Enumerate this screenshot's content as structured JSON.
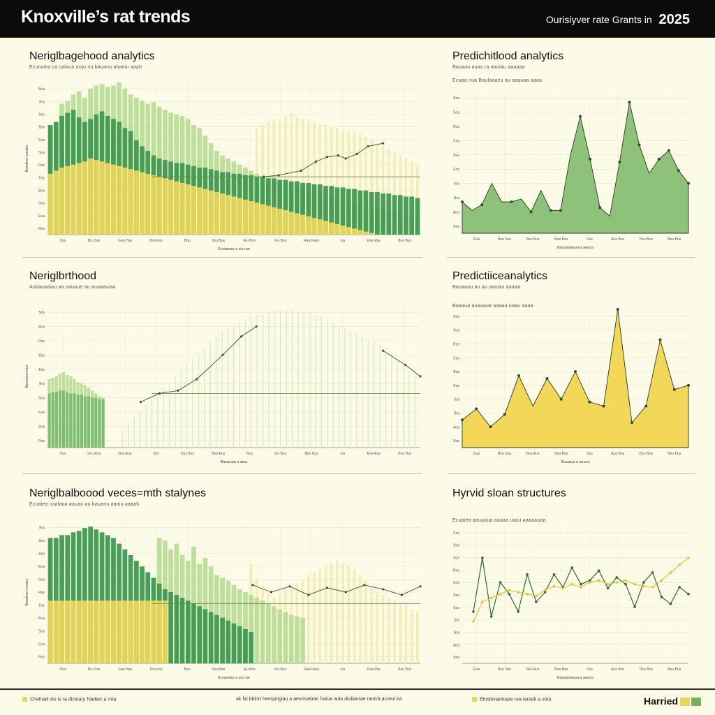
{
  "header": {
    "title": "Knoxville’s rat trends",
    "subtitle": "Ourisiyver rate Grants in",
    "year": "2025"
  },
  "colors": {
    "dark_green": "#3f9a4f",
    "mid_green": "#79bc6e",
    "light_green": "#b4d98f",
    "yellow": "#e9d65a",
    "pale_yellow": "#f3ecb0",
    "line": "#2e5a2a",
    "area_green": "#8ec27a",
    "area_yellow": "#f2d759"
  },
  "footer": {
    "left": "Chelnad ote is ra dicetary hiadiec a rnta",
    "middle": "ak fai bbinrt hensprigiau a aeorisatiran hairat aulo diolianrae rantcit acreul ira",
    "right": "Ehisbiviantoare rea tarasb a sotu",
    "brand": "Harried"
  },
  "chart_data": [
    {
      "id": "p1",
      "type": "bar",
      "title": "Neriglbagehood analytics",
      "subtitle": "Ecucaiea ca calaua arau nu bauanu ahaeiu aaah",
      "ylabel": "Bowdinai rumatur",
      "xlabel": "Eunamao a sic rae",
      "ylim": [
        0,
        100
      ],
      "y_ticks": [
        "Ros",
        "Eua",
        "Soa",
        "Bua",
        "Eos",
        "Ras",
        "Soa",
        "Eoa",
        "Bsa",
        "Sns",
        "Bra",
        "Bua"
      ],
      "x_ticks": [
        "Ouo",
        "Bru Sss",
        "Gua Hua",
        "Dra Ens",
        "Bou",
        "Ssu Boe",
        "Aiu Bos",
        "Ina Bou",
        "Raa Rass",
        "Lia",
        "Ras Rra",
        "Bou Bus"
      ],
      "series": [
        {
          "name": "Dark green",
          "color_key": "dark_green",
          "values": [
            72,
            74,
            78,
            80,
            82,
            77,
            74,
            76,
            79,
            81,
            78,
            76,
            74,
            70,
            68,
            62,
            58,
            55,
            52,
            50,
            49,
            48,
            47,
            47,
            46,
            45,
            44,
            44,
            43,
            42,
            41,
            41,
            40,
            40,
            39,
            39,
            38,
            38,
            37,
            37,
            36,
            36,
            35,
            35,
            34,
            34,
            33,
            33,
            32,
            32,
            31,
            31,
            30,
            30,
            29,
            29,
            28,
            28,
            27,
            27,
            26,
            26,
            25,
            25,
            24
          ]
        },
        {
          "name": "Light green",
          "color_key": "light_green",
          "values": [
            72,
            74,
            86,
            88,
            92,
            94,
            90,
            96,
            98,
            99,
            97,
            98,
            100,
            96,
            92,
            90,
            88,
            86,
            87,
            84,
            82,
            80,
            79,
            78,
            76,
            72,
            70,
            65,
            60,
            55,
            52,
            50,
            48,
            46,
            44,
            42,
            40,
            38,
            36,
            35,
            34,
            33,
            32,
            31,
            30,
            29,
            28,
            27,
            26,
            25,
            24,
            23,
            22,
            21,
            20,
            19,
            18,
            17,
            16,
            15,
            14,
            13,
            12,
            11,
            10
          ]
        },
        {
          "name": "Yellow",
          "color_key": "yellow",
          "values": [
            40,
            42,
            44,
            45,
            46,
            47,
            48,
            50,
            49,
            48,
            47,
            46,
            45,
            44,
            43,
            42,
            41,
            40,
            39,
            38,
            37,
            36,
            35,
            34,
            33,
            32,
            31,
            30,
            29,
            28,
            27,
            26,
            25,
            24,
            23,
            22,
            21,
            20,
            19,
            18,
            17,
            16,
            15,
            14,
            13,
            12,
            11,
            10,
            9,
            8,
            7,
            6,
            5,
            4,
            3,
            2,
            1,
            0,
            0,
            0,
            0,
            0,
            0,
            0,
            0
          ]
        },
        {
          "name": "Pale yellow",
          "color_key": "pale_yellow",
          "values": [
            0,
            0,
            0,
            0,
            0,
            0,
            0,
            0,
            0,
            0,
            0,
            0,
            0,
            0,
            0,
            0,
            0,
            0,
            0,
            0,
            0,
            0,
            0,
            0,
            0,
            0,
            0,
            0,
            0,
            0,
            0,
            0,
            0,
            0,
            0,
            0,
            70,
            72,
            74,
            76,
            75,
            78,
            80,
            77,
            76,
            75,
            74,
            73,
            72,
            71,
            70,
            69,
            68,
            67,
            66,
            64,
            62,
            60,
            58,
            56,
            54,
            52,
            50,
            48,
            46
          ]
        }
      ],
      "trend": {
        "points": [
          [
            0.58,
            0.62
          ],
          [
            0.62,
            0.61
          ],
          [
            0.68,
            0.58
          ],
          [
            0.72,
            0.52
          ],
          [
            0.75,
            0.49
          ],
          [
            0.78,
            0.48
          ],
          [
            0.8,
            0.5
          ],
          [
            0.83,
            0.47
          ],
          [
            0.86,
            0.42
          ],
          [
            0.9,
            0.4
          ]
        ],
        "baseline": 0.62
      }
    },
    {
      "id": "p2",
      "type": "area",
      "title": "Predichitlood analytics",
      "subtitle": "Bauaau auaa ra aauiau aaaaaa",
      "subtitle2": "Ecuaa nua Baulaaaeu au aaauaa aaaa",
      "ylim": [
        0,
        100
      ],
      "y_ticks": [
        "Bos",
        "Aoa",
        "Bra",
        "Sss",
        "Eos",
        "Bsa",
        "Eos",
        "Ros",
        "Soa",
        "Bos"
      ],
      "x_ticks": [
        "Gua",
        "Bou Sou",
        "Bsu Aun",
        "Bua Bos",
        "Ous",
        "Aua Bou",
        "Dsu Bou",
        "Beu Bus"
      ],
      "xlabel": "Bacaiuraaua a aeuos",
      "values": [
        22,
        16,
        20,
        35,
        22,
        22,
        24,
        15,
        30,
        16,
        16,
        55,
        82,
        52,
        18,
        12,
        50,
        92,
        62,
        42,
        52,
        58,
        44,
        35
      ],
      "marker_idx": [
        0,
        2,
        5,
        7,
        9,
        10,
        12,
        13,
        14,
        16,
        17,
        18,
        20,
        21,
        22,
        23
      ]
    },
    {
      "id": "p3",
      "type": "bar",
      "title": "Neriglbrthood",
      "subtitle": "Aubauaaiau aa uauaue au auaaauiaa",
      "ylabel": "Bowaiarumaiur",
      "xlabel": "Bauaaua a aiaa",
      "ylim": [
        0,
        100
      ],
      "y_ticks": [
        "Ros",
        "Bua",
        "Eua",
        "Soa",
        "Bra",
        "Eos",
        "Bsa",
        "Ras",
        "Bua",
        "Sns"
      ],
      "x_ticks": [
        "Ouo",
        "Sou Rou",
        "Bsu Aua",
        "Bru",
        "Ous Bus",
        "Bon Eus",
        "Bou",
        "Ino Bou",
        "Beu Bus",
        "Lia",
        "Ras Rsa",
        "Bou Bus"
      ],
      "series": [
        {
          "name": "Green",
          "color_key": "mid_green",
          "values": [
            38,
            39,
            39,
            40,
            40,
            39,
            38,
            38,
            37,
            37,
            36,
            36,
            35,
            35,
            34,
            34
          ]
        },
        {
          "name": "Light green",
          "color_key": "light_green",
          "values": [
            48,
            49,
            50,
            52,
            53,
            51,
            50,
            48,
            46,
            45,
            44,
            42,
            40,
            38,
            36,
            35
          ]
        }
      ],
      "pale_values": [
        12,
        18,
        22,
        26,
        30,
        34,
        38,
        42,
        46,
        50,
        54,
        58,
        62,
        66,
        70,
        74,
        78,
        82,
        84,
        86,
        88,
        90,
        92,
        93,
        94,
        95,
        96,
        96,
        97,
        97,
        96,
        95,
        94,
        93,
        92,
        90,
        88,
        86,
        84,
        82,
        80,
        78,
        76,
        74,
        72,
        70,
        66,
        62,
        58,
        54,
        50
      ],
      "trend": {
        "points": [
          [
            0.25,
            0.68
          ],
          [
            0.3,
            0.62
          ],
          [
            0.35,
            0.6
          ],
          [
            0.4,
            0.52
          ],
          [
            0.47,
            0.35
          ],
          [
            0.52,
            0.22
          ],
          [
            0.56,
            0.15
          ]
        ],
        "baseline": 0.62,
        "tail": [
          [
            0.9,
            0.32
          ],
          [
            0.96,
            0.42
          ],
          [
            1.0,
            0.5
          ]
        ]
      }
    },
    {
      "id": "p4",
      "type": "area",
      "title": "Predictiiceanalytics",
      "subtitle": "Bauaaau au au aauiau aaaaa",
      "subtitle2": "Baaaua auaaaua aaaaa uaau aaaa",
      "ylim": [
        0,
        100
      ],
      "y_ticks": [
        "Bos",
        "Aoa",
        "Bra",
        "Sss",
        "Eos",
        "Bsa",
        "Eos",
        "Ros",
        "Soa",
        "Bos"
      ],
      "x_ticks": [
        "Gua",
        "Bou Sou",
        "Bsu Aun",
        "Bua Bos",
        "Ous",
        "Aua Bou",
        "Dsu Bou",
        "Beu Bus"
      ],
      "xlabel": "Bacaiua a aeuos",
      "values": [
        20,
        28,
        15,
        24,
        52,
        30,
        50,
        35,
        55,
        33,
        30,
        100,
        18,
        30,
        78,
        42,
        45
      ],
      "marker_idx": [
        0,
        1,
        2,
        3,
        4,
        6,
        7,
        8,
        9,
        10,
        11,
        12,
        13,
        14,
        15,
        16
      ]
    },
    {
      "id": "p5",
      "type": "bar",
      "title": "Neriglbalboood veces=mth stalynes",
      "subtitle": "Ecuaiea caalaua aauau au bauanu aaaiu aaaah",
      "ylabel": "Bowdinai rumatur",
      "xlabel": "Eunamao a sic rae",
      "ylim": [
        0,
        100
      ],
      "y_ticks": [
        "Ros",
        "Eua",
        "Soa",
        "Bua",
        "Eos",
        "Ras",
        "Soa",
        "Eoa",
        "Bsa",
        "Sns",
        "Bra"
      ],
      "x_ticks": [
        "Ouo",
        "Bru Sss",
        "Gua Hua",
        "Dra Ens",
        "Bou",
        "Ssu Boe",
        "Aiu Bos",
        "Ina Bou",
        "Raa Rass",
        "Lia",
        "Ras Rra",
        "Bou Bus"
      ],
      "series": [
        {
          "name": "Dark green",
          "color_key": "dark_green",
          "values": [
            88,
            88,
            90,
            90,
            92,
            93,
            95,
            96,
            94,
            92,
            90,
            88,
            84,
            80,
            76,
            72,
            68,
            64,
            60,
            56,
            52,
            50,
            48,
            46,
            44,
            42,
            40,
            38,
            36,
            34,
            32,
            30,
            28,
            26,
            24,
            22
          ]
        },
        {
          "name": "Light green",
          "color_key": "light_green",
          "values": [
            0,
            0,
            0,
            0,
            0,
            0,
            0,
            0,
            0,
            0,
            0,
            0,
            0,
            0,
            0,
            0,
            0,
            0,
            0,
            88,
            86,
            80,
            84,
            76,
            72,
            82,
            70,
            74,
            68,
            62,
            60,
            58,
            55,
            52,
            50,
            48,
            46,
            44,
            42,
            40,
            38,
            36,
            34,
            33,
            32
          ]
        },
        {
          "name": "Yellow",
          "color_key": "yellow",
          "values": [
            44,
            44,
            44,
            44,
            44,
            44,
            44,
            44,
            44,
            44,
            44,
            44,
            44,
            44,
            44,
            44,
            44,
            44,
            44,
            44,
            44,
            0,
            0,
            0,
            0,
            0,
            0,
            0,
            0,
            0,
            0,
            0,
            0,
            0,
            0,
            0
          ]
        },
        {
          "name": "Pale yellow",
          "color_key": "pale_yellow",
          "values": [
            0,
            0,
            0,
            0,
            0,
            0,
            0,
            0,
            0,
            0,
            0,
            0,
            0,
            0,
            0,
            0,
            0,
            0,
            0,
            0,
            0,
            0,
            0,
            0,
            0,
            0,
            0,
            0,
            0,
            0,
            0,
            0,
            0,
            0,
            0,
            70,
            60,
            55,
            50,
            46,
            48,
            52,
            54,
            56,
            58,
            62,
            64,
            66,
            68,
            70,
            72,
            70,
            68,
            66,
            62,
            58,
            54,
            50,
            48,
            46,
            44,
            42,
            40,
            38,
            36
          ]
        }
      ],
      "trend": {
        "points": [
          [
            0.55,
            0.45
          ],
          [
            0.6,
            0.5
          ],
          [
            0.65,
            0.46
          ],
          [
            0.7,
            0.52
          ],
          [
            0.75,
            0.47
          ],
          [
            0.8,
            0.5
          ],
          [
            0.85,
            0.45
          ],
          [
            0.9,
            0.48
          ],
          [
            0.95,
            0.52
          ],
          [
            1.0,
            0.46
          ]
        ],
        "baseline": 0.58
      }
    },
    {
      "id": "p6",
      "type": "line",
      "title": "Hyrvid sloan structures",
      "subtitle": "Ecuaiea aauaaua aaaaa uaau aaaaauaa",
      "ylim": [
        0,
        100
      ],
      "y_ticks": [
        "Bos",
        "Aoa",
        "Bra",
        "Sss",
        "Eos",
        "Bsa",
        "Eos",
        "Ros",
        "Soa",
        "Bos",
        "Eos"
      ],
      "x_ticks": [
        "Gua",
        "Bou Sou",
        "Bsu Aun",
        "Bua Bos",
        "Ous",
        "Aua Bou",
        "Dsu Bou",
        "Beu Bus"
      ],
      "xlabel": "Bacaiuraaua a aeuos",
      "series": [
        {
          "name": "Green",
          "color_key": "line",
          "values": [
            30,
            85,
            25,
            60,
            48,
            30,
            68,
            40,
            50,
            68,
            55,
            75,
            58,
            62,
            72,
            54,
            65,
            58,
            35,
            60,
            70,
            45,
            38,
            55,
            48
          ]
        },
        {
          "name": "Yellow",
          "color_key": "yellow",
          "values": [
            20,
            40,
            44,
            48,
            52,
            50,
            48,
            46,
            52,
            56,
            54,
            58,
            55,
            60,
            62,
            58,
            60,
            62,
            58,
            56,
            55,
            62,
            70,
            78,
            85
          ]
        }
      ]
    }
  ]
}
